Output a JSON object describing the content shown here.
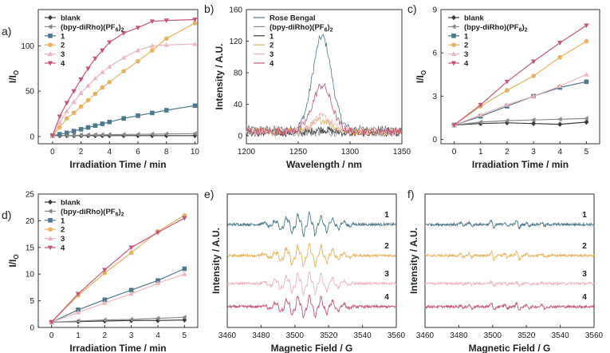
{
  "colors": {
    "blank": "#3a3a3a",
    "ref": "#8a8a8a",
    "s1": "#4f7889",
    "s2": "#e3b360",
    "s3": "#eab6bf",
    "s4": "#c3567a",
    "axis": "#333333"
  },
  "chart_data": [
    {
      "id": "a",
      "panel_label": "a)",
      "type": "line",
      "xlabel": "Irradiation Time / min",
      "ylabel": "I/I",
      "ylabel_sub": "O",
      "xlim": [
        -1,
        10.2
      ],
      "ylim": [
        -8,
        140
      ],
      "xticks": [
        0,
        2,
        4,
        6,
        8,
        10
      ],
      "yticks": [
        0,
        50,
        100
      ],
      "x": [
        0,
        0.5,
        1,
        1.5,
        2,
        2.5,
        3,
        3.5,
        4,
        5,
        6,
        7,
        8,
        10
      ],
      "series": [
        {
          "name": "blank",
          "color_key": "blank",
          "marker": "diamond",
          "values": [
            1,
            1,
            1,
            1,
            1,
            1,
            1,
            1,
            1,
            1,
            1,
            1,
            1,
            1
          ]
        },
        {
          "name": "(bpy-diRho)(PF6)2",
          "color_key": "ref",
          "marker": "tri-left",
          "values": [
            1,
            1,
            1.2,
            1.3,
            1.5,
            1.6,
            1.8,
            1.9,
            2,
            2.2,
            2.4,
            2.6,
            2.8,
            3.2
          ]
        },
        {
          "name": "1",
          "color_key": "s1",
          "marker": "square",
          "values": [
            1,
            2.5,
            4,
            6,
            8,
            10,
            12,
            14,
            16,
            20,
            23,
            26,
            29,
            34
          ]
        },
        {
          "name": "2",
          "color_key": "s2",
          "marker": "circle",
          "values": [
            1,
            10,
            20,
            26,
            33,
            40,
            47,
            54,
            60,
            72,
            83,
            95,
            108,
            125
          ]
        },
        {
          "name": "3",
          "color_key": "s3",
          "marker": "tri-up",
          "values": [
            1,
            15,
            28,
            38,
            48,
            56,
            64,
            71,
            77,
            87,
            95,
            100,
            101,
            102
          ]
        },
        {
          "name": "4",
          "color_key": "s4",
          "marker": "tri-down",
          "values": [
            1,
            22,
            37,
            50,
            63,
            75,
            86,
            95,
            104,
            114,
            120,
            127,
            128,
            129
          ]
        }
      ],
      "legend": [
        {
          "label": "blank",
          "sub": ""
        },
        {
          "label": "(bpy-diRho)(PF",
          "sub": "6",
          "post": ")",
          "sub2": "2"
        },
        {
          "label": "1",
          "sub": ""
        },
        {
          "label": "2",
          "sub": ""
        },
        {
          "label": "3",
          "sub": ""
        },
        {
          "label": "4",
          "sub": ""
        }
      ]
    },
    {
      "id": "b",
      "panel_label": "b)",
      "type": "line",
      "xlabel": "Wavelength / nm",
      "ylabel": "Intensity / A.U.",
      "xlim": [
        1200,
        1350
      ],
      "ylim": [
        -10,
        160
      ],
      "xticks": [
        1200,
        1250,
        1300,
        1350
      ],
      "yticks": [
        0,
        40,
        80,
        120,
        160
      ],
      "peaks": [
        {
          "name": "Rose Bengal",
          "color_key": "s1",
          "peak_x": 1273,
          "peak_height": 118,
          "baseline": 8
        },
        {
          "name": "(bpy-diRho)(PF6)2",
          "color_key": "ref",
          "peak_x": 1273,
          "peak_height": 0,
          "baseline": 4
        },
        {
          "name": "1",
          "color_key": "blank",
          "peak_x": 1273,
          "peak_height": 4,
          "baseline": 4
        },
        {
          "name": "2",
          "color_key": "s2",
          "peak_x": 1273,
          "peak_height": 14,
          "baseline": 6
        },
        {
          "name": "3",
          "color_key": "s3",
          "peak_x": 1273,
          "peak_height": 18,
          "baseline": 6
        },
        {
          "name": "4",
          "color_key": "s4",
          "peak_x": 1273,
          "peak_height": 58,
          "baseline": 6
        }
      ],
      "legend": [
        {
          "label": "Rose Bengal",
          "sub": ""
        },
        {
          "label": "(bpy-diRho)(PF",
          "sub": "6",
          "post": ")",
          "sub2": "2"
        },
        {
          "label": "1",
          "sub": ""
        },
        {
          "label": "2",
          "sub": ""
        },
        {
          "label": "3",
          "sub": ""
        },
        {
          "label": "4",
          "sub": ""
        }
      ]
    },
    {
      "id": "c",
      "panel_label": "c)",
      "type": "line",
      "xlabel": "Irradiation Time / min",
      "ylabel": "I/I",
      "ylabel_sub": "O",
      "xlim": [
        -0.5,
        5.5
      ],
      "ylim": [
        -0.3,
        9
      ],
      "xticks": [
        0,
        1,
        2,
        3,
        4,
        5
      ],
      "yticks": [
        0,
        3,
        6,
        9
      ],
      "x": [
        0,
        1,
        2,
        3,
        4,
        5
      ],
      "series": [
        {
          "name": "blank",
          "color_key": "blank",
          "marker": "diamond",
          "values": [
            1,
            1.1,
            1.15,
            1.1,
            1.05,
            1.2
          ]
        },
        {
          "name": "(bpy-diRho)(PF6)2",
          "color_key": "ref",
          "marker": "tri-left",
          "values": [
            1,
            1.2,
            1.3,
            1.35,
            1.4,
            1.45
          ]
        },
        {
          "name": "1",
          "color_key": "s1",
          "marker": "square",
          "values": [
            1,
            1.6,
            2.3,
            3.0,
            3.6,
            4.0
          ]
        },
        {
          "name": "2",
          "color_key": "s2",
          "marker": "circle",
          "values": [
            1,
            2.3,
            3.4,
            4.4,
            5.7,
            6.8
          ]
        },
        {
          "name": "3",
          "color_key": "s3",
          "marker": "tri-up",
          "values": [
            1,
            1.7,
            2.4,
            3.0,
            3.7,
            4.5
          ]
        },
        {
          "name": "4",
          "color_key": "s4",
          "marker": "tri-down",
          "values": [
            1,
            2.4,
            4.0,
            5.4,
            6.7,
            7.9
          ]
        }
      ],
      "legend": [
        {
          "label": "blank",
          "sub": ""
        },
        {
          "label": "(bpy-diRho)(PF",
          "sub": "6",
          "post": ")",
          "sub2": "2"
        },
        {
          "label": "1",
          "sub": ""
        },
        {
          "label": "2",
          "sub": ""
        },
        {
          "label": "3",
          "sub": ""
        },
        {
          "label": "4",
          "sub": ""
        }
      ]
    },
    {
      "id": "d",
      "panel_label": "d)",
      "type": "line",
      "xlabel": "Irradiation Time / min",
      "ylabel": "I/I",
      "ylabel_sub": "O",
      "xlim": [
        -0.5,
        5.5
      ],
      "ylim": [
        0,
        25
      ],
      "xticks": [
        0,
        1,
        2,
        3,
        4,
        5
      ],
      "yticks": [
        0,
        5,
        10,
        15,
        20,
        25
      ],
      "x": [
        0,
        1,
        2,
        3,
        4,
        5
      ],
      "series": [
        {
          "name": "blank",
          "color_key": "blank",
          "marker": "diamond",
          "values": [
            1,
            1.1,
            1.2,
            1.3,
            1.3,
            1.4
          ]
        },
        {
          "name": "(bpy-diRho)(PF6)2",
          "color_key": "ref",
          "marker": "tri-left",
          "values": [
            1,
            1.2,
            1.4,
            1.5,
            1.7,
            1.9
          ]
        },
        {
          "name": "1",
          "color_key": "s1",
          "marker": "square",
          "values": [
            1,
            3.3,
            5.2,
            7.0,
            8.8,
            11.0
          ]
        },
        {
          "name": "2",
          "color_key": "s2",
          "marker": "circle",
          "values": [
            1,
            6.0,
            10.2,
            14.0,
            18.0,
            21.0
          ]
        },
        {
          "name": "3",
          "color_key": "s3",
          "marker": "tri-up",
          "values": [
            1,
            2.8,
            4.6,
            6.3,
            8.3,
            10.0
          ]
        },
        {
          "name": "4",
          "color_key": "s4",
          "marker": "tri-down",
          "values": [
            1,
            6.3,
            10.8,
            15.0,
            17.8,
            20.5
          ]
        }
      ],
      "legend": [
        {
          "label": "blank",
          "sub": ""
        },
        {
          "label": "(bpy-diRho)(PF",
          "sub": "6",
          "post": ")",
          "sub2": "2"
        },
        {
          "label": "1",
          "sub": ""
        },
        {
          "label": "2",
          "sub": ""
        },
        {
          "label": "3",
          "sub": ""
        },
        {
          "label": "4",
          "sub": ""
        }
      ]
    },
    {
      "id": "e",
      "panel_label": "e)",
      "type": "line",
      "xlabel": "Magnetic Field / G",
      "ylabel": "Intensity / A.U.",
      "xlim": [
        3460,
        3560
      ],
      "xticks": [
        3460,
        3480,
        3500,
        3520,
        3540,
        3560
      ],
      "spectrum": "broad-multiplet",
      "traces": [
        {
          "name": "1",
          "color_key": "s1"
        },
        {
          "name": "2",
          "color_key": "s2"
        },
        {
          "name": "3",
          "color_key": "s3"
        },
        {
          "name": "4",
          "color_key": "s4"
        }
      ]
    },
    {
      "id": "f",
      "panel_label": "f)",
      "type": "line",
      "xlabel": "Magnetic Field / G",
      "ylabel": "Intensity / A.U.",
      "xlim": [
        3460,
        3560
      ],
      "xticks": [
        3460,
        3480,
        3500,
        3520,
        3540,
        3560
      ],
      "spectrum": "sharp-lines",
      "traces": [
        {
          "name": "1",
          "color_key": "s1"
        },
        {
          "name": "2",
          "color_key": "s2"
        },
        {
          "name": "3",
          "color_key": "s3"
        },
        {
          "name": "4",
          "color_key": "s4"
        }
      ]
    }
  ]
}
